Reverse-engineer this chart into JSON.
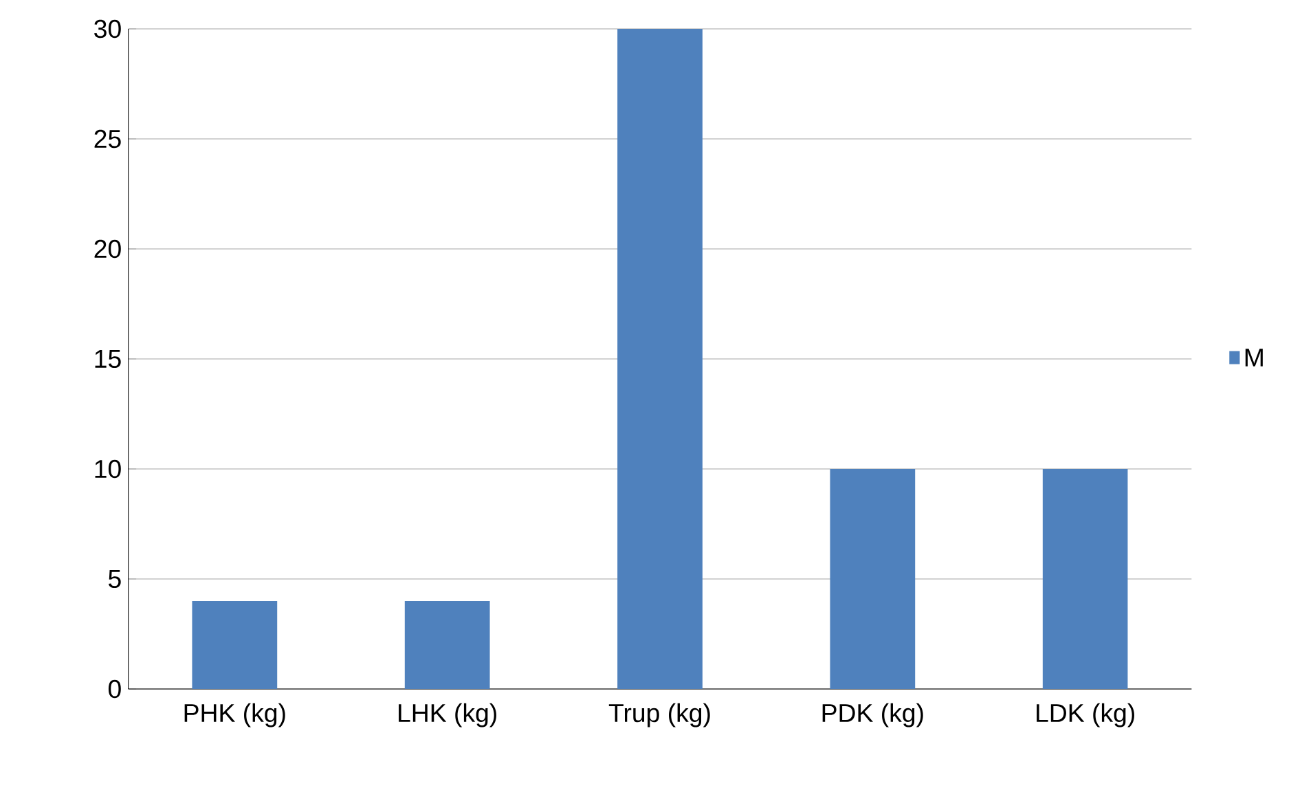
{
  "chart_data": {
    "type": "bar",
    "categories": [
      "PHK (kg)",
      "LHK (kg)",
      "Trup (kg)",
      "PDK (kg)",
      "LDK (kg)"
    ],
    "series": [
      {
        "name": "M",
        "color": "#4f81bd",
        "values": [
          4,
          4,
          30,
          10,
          10
        ]
      }
    ],
    "ylim": [
      0,
      30
    ],
    "yticks": [
      0,
      5,
      10,
      15,
      20,
      25,
      30
    ],
    "grid": "y",
    "legend": "right"
  }
}
